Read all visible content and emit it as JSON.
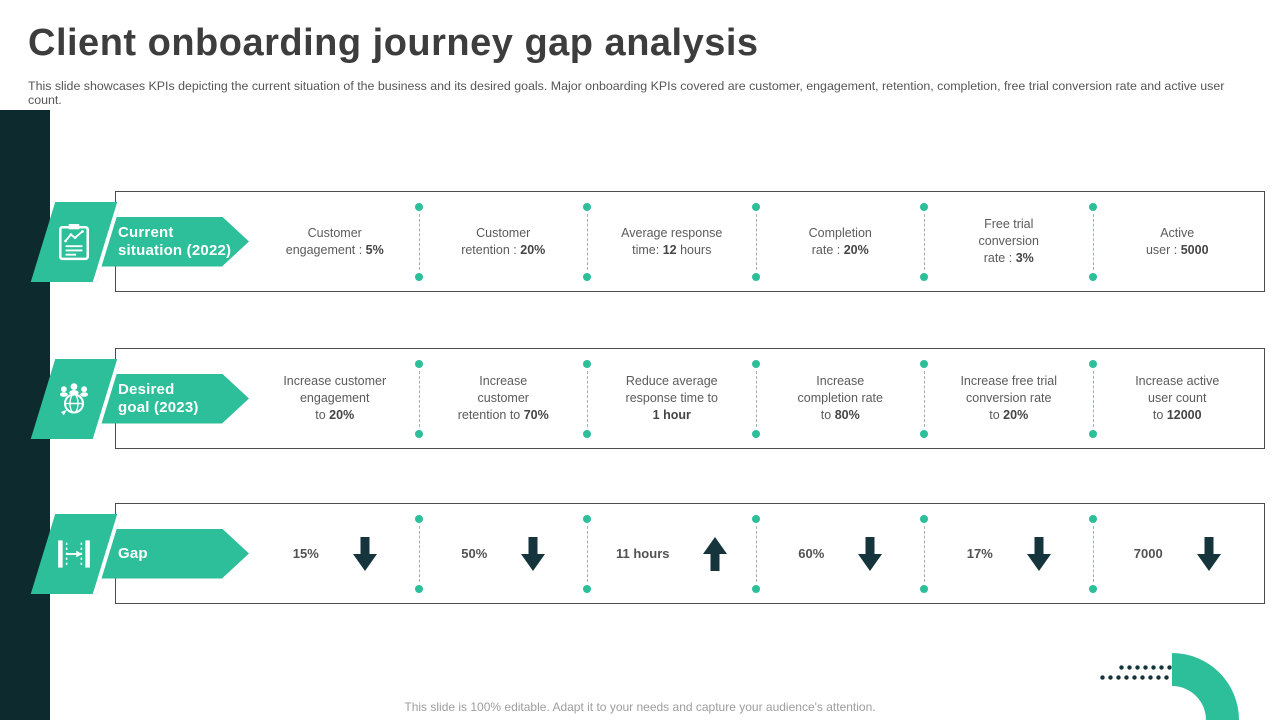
{
  "slide": {
    "title": "Client onboarding journey gap analysis",
    "subtitle": "This slide showcases KPIs depicting the current situation of the business and its desired goals. Major onboarding KPIs covered are customer, engagement, retention, completion, free trial conversion rate and active user count.",
    "footer": "This slide is 100% editable. Adapt it to your needs and capture your audience's attention."
  },
  "colors": {
    "accent_teal": "#2DBE9A",
    "dark_teal": "#0D2B2E",
    "gap_arrow": "#15343C",
    "separator_dot": "#2DBE9A"
  },
  "rows": [
    {
      "banner": {
        "lines": [
          "Current",
          "situation (2022)"
        ],
        "icon": "clipboard-chart-icon"
      },
      "cells": [
        {
          "lines": [
            [
              {
                "text": "Customer",
                "bold": false
              }
            ],
            [
              {
                "text": "engagement : ",
                "bold": false
              },
              {
                "text": "5%",
                "bold": true
              }
            ]
          ]
        },
        {
          "lines": [
            [
              {
                "text": "Customer",
                "bold": false
              }
            ],
            [
              {
                "text": "retention : ",
                "bold": false
              },
              {
                "text": "20%",
                "bold": true
              }
            ]
          ]
        },
        {
          "lines": [
            [
              {
                "text": "Average response",
                "bold": false
              }
            ],
            [
              {
                "text": "time: ",
                "bold": false
              },
              {
                "text": "12",
                "bold": true
              },
              {
                "text": " hours",
                "bold": false
              }
            ]
          ]
        },
        {
          "lines": [
            [
              {
                "text": "Completion",
                "bold": false
              }
            ],
            [
              {
                "text": "rate : ",
                "bold": false
              },
              {
                "text": "20%",
                "bold": true
              }
            ]
          ]
        },
        {
          "lines": [
            [
              {
                "text": "Free trial",
                "bold": false
              }
            ],
            [
              {
                "text": "conversion",
                "bold": false
              }
            ],
            [
              {
                "text": "rate : ",
                "bold": false
              },
              {
                "text": "3%",
                "bold": true
              }
            ]
          ]
        },
        {
          "lines": [
            [
              {
                "text": "Active",
                "bold": false
              }
            ],
            [
              {
                "text": "user : ",
                "bold": false
              },
              {
                "text": "5000",
                "bold": true
              }
            ]
          ]
        }
      ]
    },
    {
      "banner": {
        "lines": [
          "Desired",
          "goal (2023)"
        ],
        "icon": "team-goal-icon"
      },
      "cells": [
        {
          "lines": [
            [
              {
                "text": "Increase customer",
                "bold": false
              }
            ],
            [
              {
                "text": "engagement",
                "bold": false
              }
            ],
            [
              {
                "text": "to ",
                "bold": false
              },
              {
                "text": "20%",
                "bold": true
              }
            ]
          ]
        },
        {
          "lines": [
            [
              {
                "text": "Increase",
                "bold": false
              }
            ],
            [
              {
                "text": "customer",
                "bold": false
              }
            ],
            [
              {
                "text": "retention to ",
                "bold": false
              },
              {
                "text": "70%",
                "bold": true
              }
            ]
          ]
        },
        {
          "lines": [
            [
              {
                "text": "Reduce average",
                "bold": false
              }
            ],
            [
              {
                "text": "response time to",
                "bold": false
              }
            ],
            [
              {
                "text": "1 hour",
                "bold": true
              }
            ]
          ]
        },
        {
          "lines": [
            [
              {
                "text": "Increase",
                "bold": false
              }
            ],
            [
              {
                "text": "completion rate",
                "bold": false
              }
            ],
            [
              {
                "text": "to ",
                "bold": false
              },
              {
                "text": "80%",
                "bold": true
              }
            ]
          ]
        },
        {
          "lines": [
            [
              {
                "text": "Increase free trial",
                "bold": false
              }
            ],
            [
              {
                "text": "conversion rate",
                "bold": false
              }
            ],
            [
              {
                "text": "to ",
                "bold": false
              },
              {
                "text": "20%",
                "bold": true
              }
            ]
          ]
        },
        {
          "lines": [
            [
              {
                "text": "Increase active",
                "bold": false
              }
            ],
            [
              {
                "text": "user count",
                "bold": false
              }
            ],
            [
              {
                "text": "to ",
                "bold": false
              },
              {
                "text": "12000",
                "bold": true
              }
            ]
          ]
        }
      ]
    },
    {
      "banner": {
        "lines": [
          "Gap"
        ],
        "icon": "gap-measure-icon"
      },
      "cells": [
        {
          "value": "15%",
          "direction": "down"
        },
        {
          "value": "50%",
          "direction": "down"
        },
        {
          "value": "11 hours",
          "direction": "up"
        },
        {
          "value": "60%",
          "direction": "down"
        },
        {
          "value": "17%",
          "direction": "down"
        },
        {
          "value": "7000",
          "direction": "down"
        }
      ]
    }
  ]
}
